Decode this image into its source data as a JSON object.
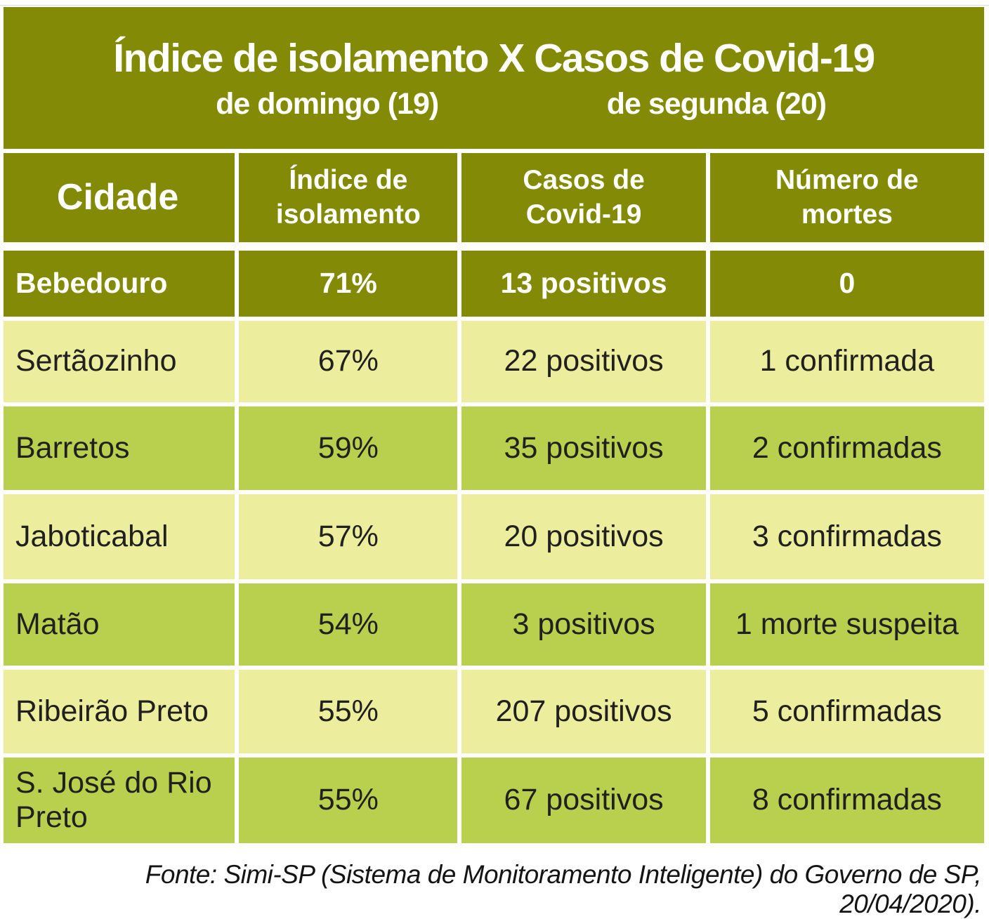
{
  "colors": {
    "olive": "#838a05",
    "row_light": "#ecee9e",
    "row_mid": "#b9d04f",
    "header_text": "#ffffff",
    "body_text": "#221f1f"
  },
  "title": {
    "main": "Índice de isolamento X Casos de Covid-19",
    "sub_left": "de domingo (19)",
    "sub_right": "de segunda (20)"
  },
  "header": {
    "cidade": "Cidade",
    "cols": [
      {
        "l1": "Índice de",
        "l2": "isolamento"
      },
      {
        "l1": "Casos de",
        "l2": "Covid-19"
      },
      {
        "l1": "Número de",
        "l2": "mortes"
      }
    ]
  },
  "table": {
    "rows": [
      {
        "cidade": "Bebedouro",
        "isolamento": "71%",
        "casos": "13 positivos",
        "mortes": "0"
      },
      {
        "cidade": "Sertãozinho",
        "isolamento": "67%",
        "casos": "22 positivos",
        "mortes": "1 confirmada"
      },
      {
        "cidade": "Barretos",
        "isolamento": "59%",
        "casos": "35 positivos",
        "mortes": "2 confirmadas"
      },
      {
        "cidade": "Jaboticabal",
        "isolamento": "57%",
        "casos": "20 positivos",
        "mortes": "3 confirmadas"
      },
      {
        "cidade": "Matão",
        "isolamento": "54%",
        "casos": "3 positivos",
        "mortes": "1 morte suspeita"
      },
      {
        "cidade": "Ribeirão Preto",
        "isolamento": "55%",
        "casos": "207 positivos",
        "mortes": "5 confirmadas"
      },
      {
        "cidade": "S. José do Rio Preto",
        "isolamento": "55%",
        "casos": "67 positivos",
        "mortes": "8 confirmadas"
      }
    ]
  },
  "footer": {
    "source": "Fonte: Simi-SP (Sistema de Monitoramento Inteligente) do Governo de SP, 20/04/2020)."
  },
  "chart_data": {
    "type": "table",
    "title": "Índice de isolamento X Casos de Covid-19",
    "subtitles": [
      "de domingo (19)",
      "de segunda (20)"
    ],
    "columns": [
      "Cidade",
      "Índice de isolamento",
      "Casos de Covid-19",
      "Número de mortes"
    ],
    "rows": [
      [
        "Bebedouro",
        "71%",
        "13 positivos",
        "0"
      ],
      [
        "Sertãozinho",
        "67%",
        "22 positivos",
        "1 confirmada"
      ],
      [
        "Barretos",
        "59%",
        "35 positivos",
        "2 confirmadas"
      ],
      [
        "Jaboticabal",
        "57%",
        "20 positivos",
        "3 confirmadas"
      ],
      [
        "Matão",
        "54%",
        "3 positivos",
        "1 morte suspeita"
      ],
      [
        "Ribeirão Preto",
        "55%",
        "207 positivos",
        "5 confirmadas"
      ],
      [
        "S. José do Rio Preto",
        "55%",
        "67 positivos",
        "8 confirmadas"
      ]
    ],
    "isolation_values_pct": [
      71,
      67,
      59,
      57,
      54,
      55,
      55
    ],
    "covid_cases": [
      13,
      22,
      35,
      20,
      3,
      207,
      67
    ],
    "deaths": [
      0,
      1,
      2,
      3,
      1,
      5,
      8
    ],
    "source": "Fonte: Simi-SP (Sistema de Monitoramento Inteligente) do Governo de SP, 20/04/2020)."
  }
}
